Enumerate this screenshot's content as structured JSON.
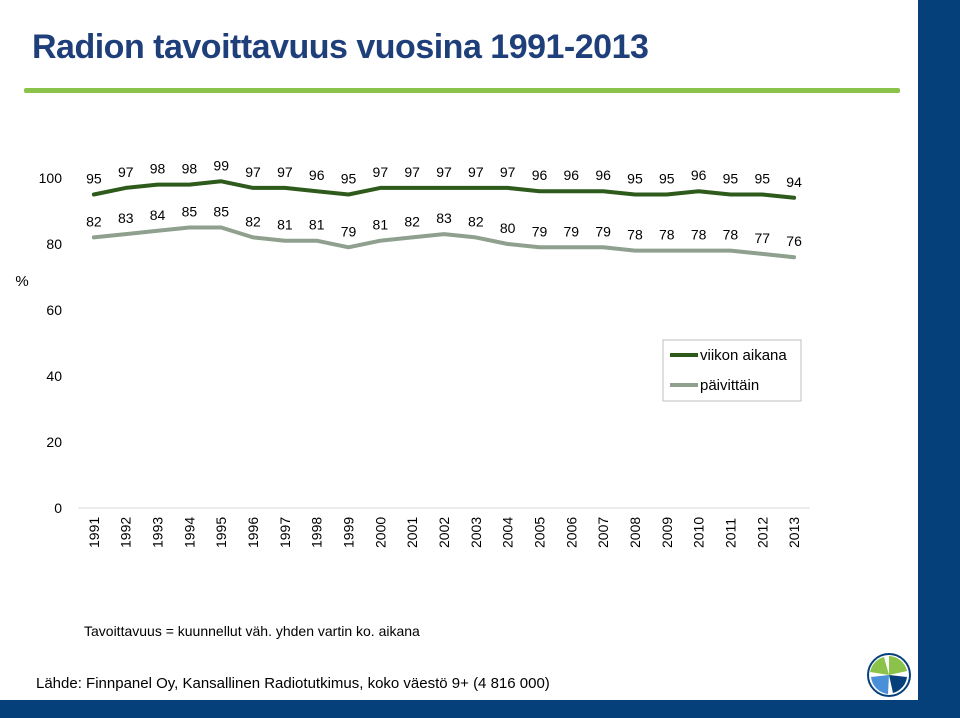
{
  "slide": {
    "title": "Radion tavoittavuus vuosina 1991-2013",
    "footnote": "Tavoittavuus = kuunnellut väh. yhden vartin ko. aikana",
    "source": "Lähde: Finnpanel Oy, Kansallinen Radiotutkimus, koko väestö 9+ (4 816 000)"
  },
  "colors": {
    "title": "#1f3f7a",
    "accent_rule": "#8bc34a",
    "band": "#06407a",
    "series_weekly": "#2e5a1c",
    "series_daily": "#8fa08e"
  },
  "chart_data": {
    "type": "line",
    "title": "Radion tavoittavuus vuosina 1991-2013",
    "ylabel": "%",
    "xlabel": "",
    "ylim": [
      0,
      100
    ],
    "yticks": [
      0,
      20,
      40,
      60,
      80,
      100
    ],
    "grid": false,
    "legend_position": "right",
    "x": [
      "1991",
      "1992",
      "1993",
      "1994",
      "1995",
      "1996",
      "1997",
      "1998",
      "1999",
      "2000",
      "2001",
      "2002",
      "2003",
      "2004",
      "2005",
      "2006",
      "2007",
      "2008",
      "2009",
      "2010",
      "2011",
      "2012",
      "2013"
    ],
    "series": [
      {
        "name": "viikon aikana",
        "color": "#2e5a1c",
        "values": [
          95,
          97,
          98,
          98,
          99,
          97,
          97,
          96,
          95,
          97,
          97,
          97,
          97,
          97,
          96,
          96,
          96,
          95,
          95,
          96,
          95,
          95,
          94
        ]
      },
      {
        "name": "päivittäin",
        "color": "#8fa08e",
        "values": [
          82,
          83,
          84,
          85,
          85,
          82,
          81,
          81,
          79,
          81,
          82,
          83,
          82,
          80,
          79,
          79,
          79,
          78,
          78,
          78,
          78,
          77,
          76
        ]
      }
    ]
  }
}
